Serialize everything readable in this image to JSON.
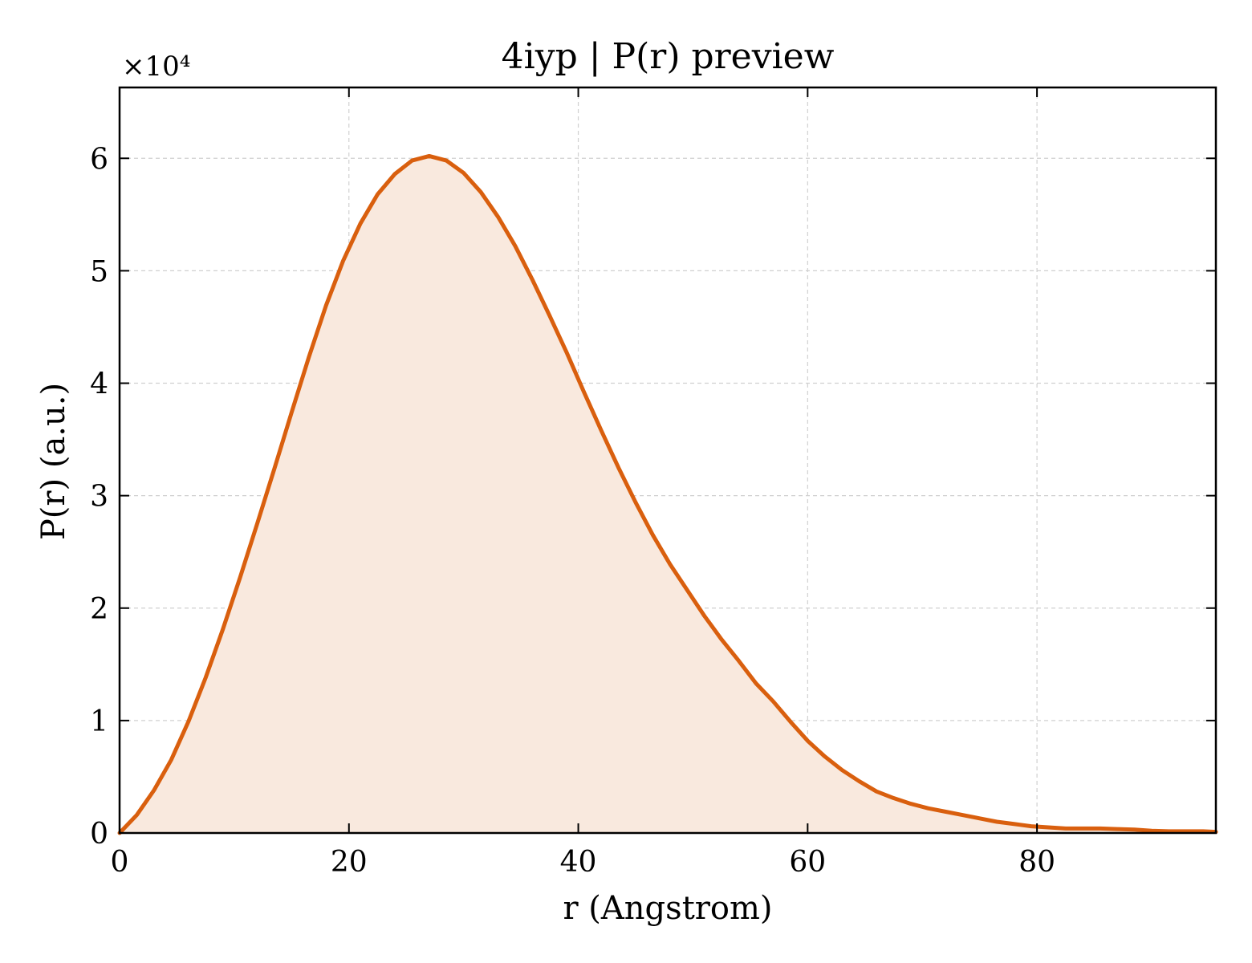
{
  "chart_data": {
    "type": "area",
    "title": "4iyp | P(r) preview",
    "xlabel": "r (Angstrom)",
    "ylabel": "P(r) (a.u.)",
    "y_multiplier_label": "×10⁴",
    "y_scale_factor": 10000,
    "xlim": [
      0,
      95.6
    ],
    "ylim": [
      0,
      6.63
    ],
    "x_ticks": [
      0,
      20,
      40,
      60,
      80
    ],
    "y_ticks": [
      0,
      1,
      2,
      3,
      4,
      5,
      6
    ],
    "grid": true,
    "colors": {
      "line": "#d95f0e",
      "fill": "#f9e9de"
    },
    "series": [
      {
        "x": [
          0,
          1.5,
          3,
          4.5,
          6,
          7.5,
          9,
          10.5,
          12,
          13.5,
          15,
          16.5,
          18,
          19.5,
          21,
          22.5,
          24,
          25.5,
          27,
          28.5,
          30,
          31.5,
          33,
          34.5,
          36,
          37.5,
          39,
          40.5,
          42,
          43.5,
          45,
          46.5,
          48,
          49.5,
          51,
          52.5,
          54,
          55.5,
          57,
          58.5,
          60,
          61.5,
          63,
          64.5,
          66,
          67.5,
          69,
          70.5,
          72,
          73.5,
          75,
          76.5,
          78,
          79.5,
          81,
          82.5,
          84,
          85.5,
          87,
          88.5,
          90,
          91.5,
          93,
          94.5,
          95.6
        ],
        "values": [
          0,
          0.16,
          0.38,
          0.65,
          0.99,
          1.38,
          1.81,
          2.27,
          2.75,
          3.24,
          3.74,
          4.23,
          4.69,
          5.09,
          5.42,
          5.68,
          5.86,
          5.98,
          6.02,
          5.98,
          5.87,
          5.7,
          5.48,
          5.22,
          4.92,
          4.6,
          4.27,
          3.92,
          3.58,
          3.25,
          2.94,
          2.65,
          2.39,
          2.16,
          1.93,
          1.72,
          1.53,
          1.33,
          1.17,
          0.99,
          0.82,
          0.68,
          0.56,
          0.46,
          0.37,
          0.31,
          0.26,
          0.22,
          0.19,
          0.16,
          0.13,
          0.1,
          0.08,
          0.06,
          0.05,
          0.04,
          0.04,
          0.04,
          0.035,
          0.03,
          0.02,
          0.015,
          0.015,
          0.015,
          0.01
        ]
      }
    ]
  }
}
